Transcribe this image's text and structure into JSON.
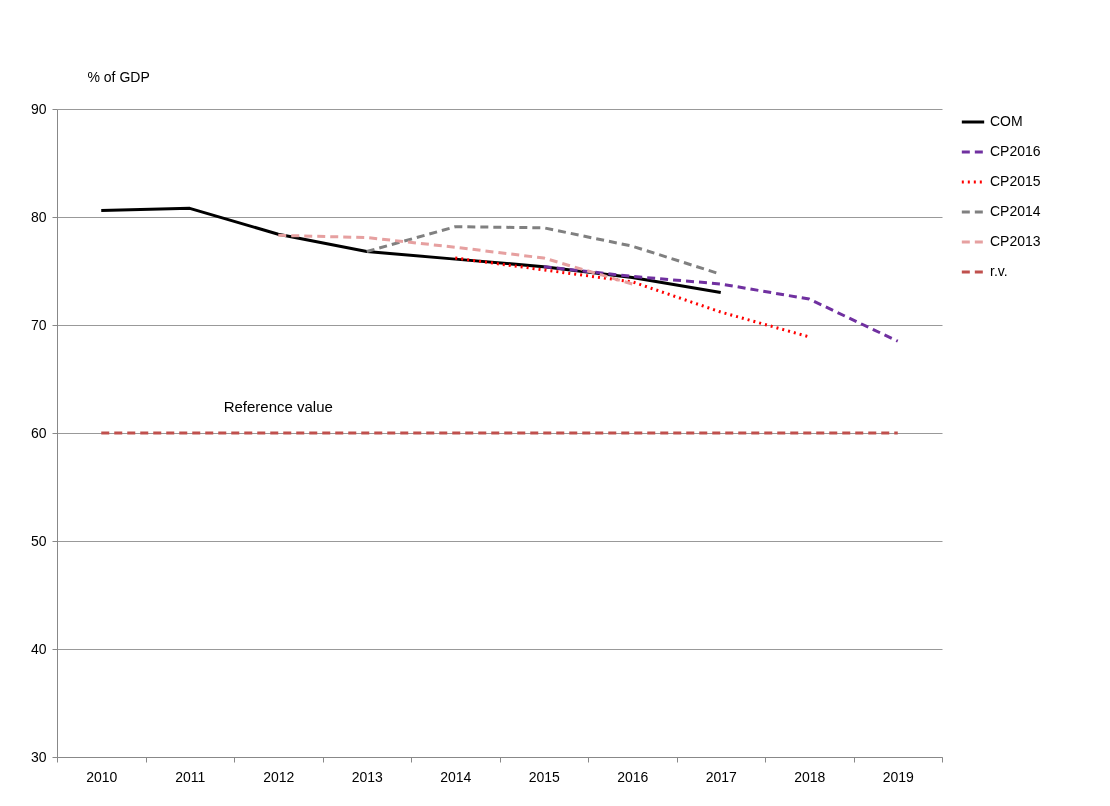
{
  "chart_data": {
    "type": "line",
    "ylabel": "% of GDP",
    "categories": [
      "2010",
      "2011",
      "2012",
      "2013",
      "2014",
      "2015",
      "2016",
      "2017",
      "2018",
      "2019"
    ],
    "ylim": [
      30,
      90
    ],
    "yticks": [
      30,
      40,
      50,
      60,
      70,
      80,
      90
    ],
    "grid": "y",
    "legend": "right",
    "marker": "none",
    "series": [
      {
        "name": "COM",
        "color": "#000000",
        "line_style": "solid",
        "values": [
          80.6,
          80.8,
          78.4,
          76.8,
          76.1,
          75.4,
          74.4,
          73.0,
          null,
          null
        ]
      },
      {
        "name": "CP2016",
        "color": "#7030a0",
        "line_style": "dashed",
        "values": [
          null,
          null,
          null,
          null,
          null,
          75.4,
          74.5,
          73.8,
          72.4,
          68.5
        ]
      },
      {
        "name": "CP2015",
        "color": "#ff0000",
        "line_style": "dotted",
        "values": [
          null,
          null,
          null,
          null,
          76.2,
          75.1,
          74.0,
          71.2,
          68.9,
          null
        ]
      },
      {
        "name": "CP2014",
        "color": "#808080",
        "line_style": "dashed",
        "values": [
          null,
          null,
          null,
          76.8,
          79.1,
          79.0,
          77.3,
          74.7,
          null,
          null
        ]
      },
      {
        "name": "CP2013",
        "color": "#e6a0a0",
        "line_style": "dashed",
        "values": [
          null,
          null,
          78.3,
          78.1,
          77.2,
          76.2,
          73.8,
          null,
          null,
          null
        ]
      },
      {
        "name": "r.v.",
        "color": "#c0504d",
        "line_style": "dashed",
        "values": [
          60,
          60,
          60,
          60,
          60,
          60,
          60,
          60,
          60,
          60
        ]
      }
    ],
    "annotations": [
      {
        "text": "Reference value",
        "x": "2012",
        "y": 60
      }
    ]
  }
}
